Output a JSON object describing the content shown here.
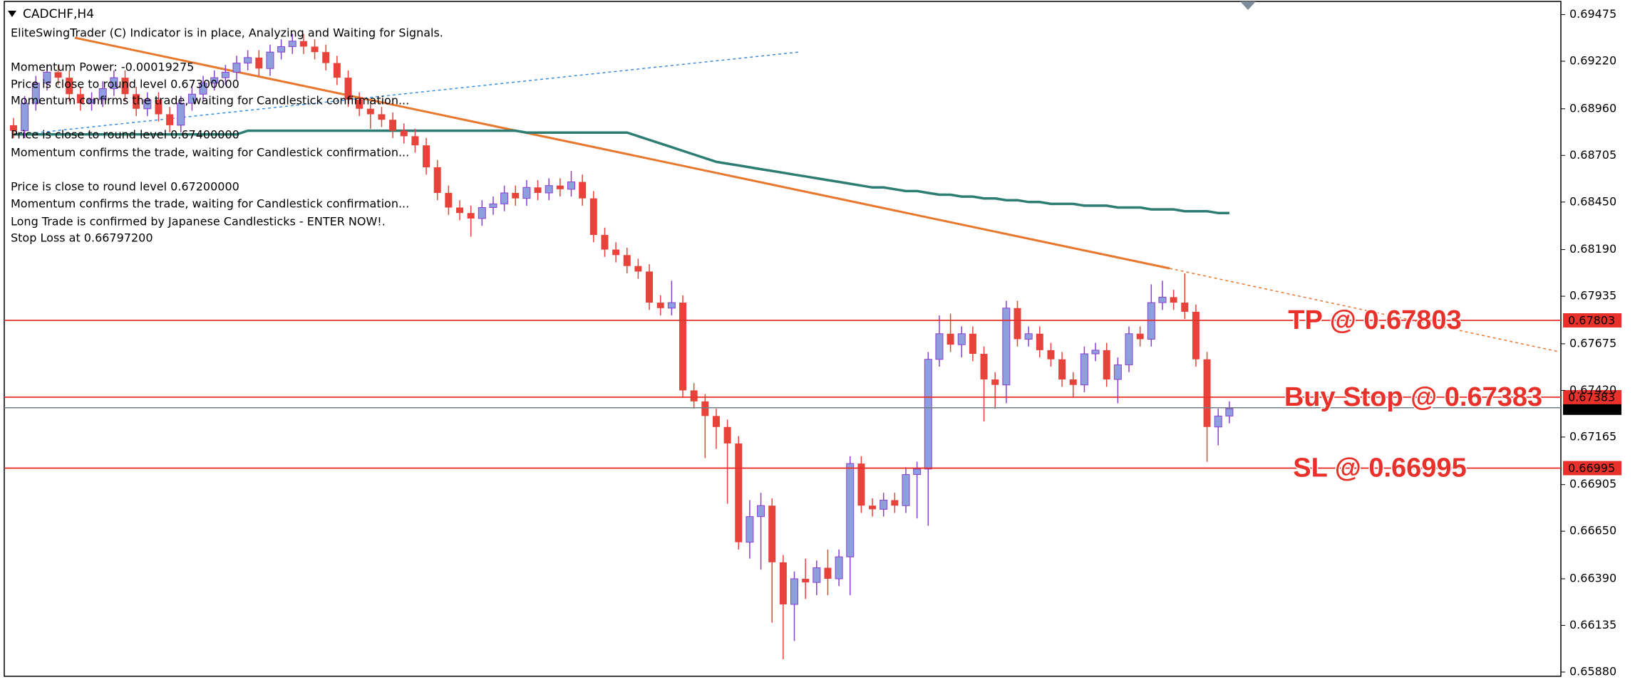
{
  "chart_data": {
    "type": "candlestick",
    "title": "CADCHF,H4",
    "messages": [
      "EliteSwingTrader (C) Indicator is in place, Analyzing and Waiting for Signals.",
      "Momentum Power: -0.00019275",
      "Price is close to round level 0.67300000",
      "Momentum confirms the trade, waiting for Candlestick confirmation...",
      "Price is close to round level 0.67400000",
      "Momentum confirms the trade, waiting for Candlestick confirmation...",
      "Price is close to round level 0.67200000",
      "Momentum confirms the trade, waiting for Candlestick confirmation...",
      "Long Trade is confirmed by Japanese Candlesticks - ENTER NOW!.",
      "Stop Loss at 0.66797200"
    ],
    "up_color": "#8d9fdc",
    "up_wick_color": "#8a3fd0",
    "down_color": "#e8433a",
    "open": [
      0.6887,
      0.6884,
      0.6899,
      0.691,
      0.6916,
      0.6913,
      0.6904,
      0.6899,
      0.6901,
      0.6907,
      0.6913,
      0.6904,
      0.6896,
      0.6901,
      0.6893,
      0.6887,
      0.6899,
      0.6904,
      0.691,
      0.6913,
      0.6916,
      0.6921,
      0.6924,
      0.6918,
      0.6927,
      0.693,
      0.6933,
      0.693,
      0.6927,
      0.6921,
      0.6913,
      0.6901,
      0.6896,
      0.6893,
      0.689,
      0.6884,
      0.6881,
      0.6876,
      0.6864,
      0.685,
      0.6842,
      0.6839,
      0.6836,
      0.6842,
      0.6844,
      0.685,
      0.6847,
      0.6853,
      0.685,
      0.6854,
      0.6852,
      0.6856,
      0.6847,
      0.6827,
      0.6819,
      0.6816,
      0.681,
      0.6807,
      0.679,
      0.6787,
      0.679,
      0.6742,
      0.6736,
      0.6728,
      0.6722,
      0.6713,
      0.6659,
      0.6673,
      0.6679,
      0.6648,
      0.6625,
      0.6639,
      0.6637,
      0.6645,
      0.6639,
      0.6651,
      0.6702,
      0.6679,
      0.6677,
      0.6682,
      0.6679,
      0.6696,
      0.6699,
      0.6759,
      0.6773,
      0.6767,
      0.6773,
      0.6762,
      0.6748,
      0.6745,
      0.6787,
      0.677,
      0.6773,
      0.6764,
      0.6759,
      0.6748,
      0.6745,
      0.6762,
      0.6764,
      0.6748,
      0.6756,
      0.6773,
      0.677,
      0.679,
      0.6793,
      0.679,
      0.6785,
      0.6759,
      0.6722,
      0.6728
    ],
    "high": [
      0.6891,
      0.6903,
      0.6914,
      0.692,
      0.692,
      0.6917,
      0.6908,
      0.6905,
      0.6911,
      0.6917,
      0.6917,
      0.6908,
      0.6905,
      0.6905,
      0.6897,
      0.6903,
      0.6908,
      0.6914,
      0.6917,
      0.692,
      0.6925,
      0.6928,
      0.6928,
      0.6931,
      0.6934,
      0.6937,
      0.6937,
      0.6934,
      0.6931,
      0.6925,
      0.6917,
      0.6905,
      0.69,
      0.6897,
      0.6894,
      0.6888,
      0.6885,
      0.688,
      0.6868,
      0.6854,
      0.6846,
      0.6843,
      0.6846,
      0.6848,
      0.6854,
      0.6854,
      0.6857,
      0.6857,
      0.6858,
      0.6858,
      0.6862,
      0.686,
      0.6851,
      0.6831,
      0.6823,
      0.682,
      0.6814,
      0.6811,
      0.6794,
      0.6802,
      0.6794,
      0.6746,
      0.674,
      0.6732,
      0.6726,
      0.6717,
      0.6682,
      0.6686,
      0.6683,
      0.6652,
      0.6643,
      0.665,
      0.6649,
      0.6655,
      0.6655,
      0.6706,
      0.6706,
      0.6683,
      0.6686,
      0.6686,
      0.67,
      0.6703,
      0.6763,
      0.6783,
      0.6784,
      0.6777,
      0.6777,
      0.6766,
      0.6752,
      0.6791,
      0.6791,
      0.6777,
      0.6777,
      0.6768,
      0.6763,
      0.6752,
      0.6766,
      0.6768,
      0.6768,
      0.676,
      0.6777,
      0.6777,
      0.68,
      0.6802,
      0.6797,
      0.6806,
      0.6789,
      0.6763,
      0.6732,
      0.6736
    ],
    "low": [
      0.688,
      0.688,
      0.6895,
      0.6906,
      0.6909,
      0.69,
      0.6895,
      0.6895,
      0.6897,
      0.6903,
      0.69,
      0.6892,
      0.6892,
      0.6889,
      0.6883,
      0.6883,
      0.6895,
      0.69,
      0.6906,
      0.6909,
      0.6912,
      0.6917,
      0.6914,
      0.6914,
      0.6923,
      0.6926,
      0.6926,
      0.6923,
      0.6917,
      0.6909,
      0.6897,
      0.6892,
      0.6885,
      0.6886,
      0.688,
      0.6877,
      0.6872,
      0.686,
      0.6846,
      0.6838,
      0.6835,
      0.6826,
      0.6832,
      0.6838,
      0.684,
      0.6843,
      0.6843,
      0.6846,
      0.6846,
      0.6848,
      0.6848,
      0.6843,
      0.6823,
      0.6815,
      0.6812,
      0.6806,
      0.6803,
      0.6786,
      0.6783,
      0.6783,
      0.6738,
      0.6732,
      0.6705,
      0.671,
      0.668,
      0.6655,
      0.665,
      0.6644,
      0.6615,
      0.6595,
      0.6605,
      0.6628,
      0.663,
      0.663,
      0.6635,
      0.663,
      0.6675,
      0.6673,
      0.6673,
      0.6675,
      0.6675,
      0.6672,
      0.6668,
      0.6755,
      0.6763,
      0.676,
      0.6758,
      0.6725,
      0.6732,
      0.6735,
      0.6766,
      0.6766,
      0.676,
      0.6755,
      0.6744,
      0.6738,
      0.6741,
      0.6758,
      0.6744,
      0.6735,
      0.6752,
      0.6766,
      0.6766,
      0.6786,
      0.6786,
      0.6781,
      0.6755,
      0.6703,
      0.6712,
      0.6724
    ],
    "close": [
      0.6884,
      0.6899,
      0.691,
      0.6916,
      0.6913,
      0.6904,
      0.6899,
      0.6901,
      0.6907,
      0.6913,
      0.6904,
      0.6896,
      0.6901,
      0.6893,
      0.6887,
      0.6899,
      0.6904,
      0.691,
      0.6913,
      0.6916,
      0.6921,
      0.6924,
      0.6918,
      0.6927,
      0.693,
      0.6933,
      0.693,
      0.6927,
      0.6921,
      0.6913,
      0.6901,
      0.6896,
      0.6893,
      0.689,
      0.6884,
      0.6881,
      0.6876,
      0.6864,
      0.685,
      0.6842,
      0.6839,
      0.6836,
      0.6842,
      0.6844,
      0.685,
      0.6847,
      0.6853,
      0.685,
      0.6854,
      0.6852,
      0.6856,
      0.6847,
      0.6827,
      0.6819,
      0.6816,
      0.681,
      0.6807,
      0.679,
      0.6787,
      0.679,
      0.6742,
      0.6736,
      0.6728,
      0.6722,
      0.6713,
      0.6659,
      0.6673,
      0.6679,
      0.6648,
      0.6625,
      0.6639,
      0.6637,
      0.6645,
      0.6639,
      0.6651,
      0.6702,
      0.6679,
      0.6677,
      0.6682,
      0.6679,
      0.6696,
      0.6699,
      0.6759,
      0.6773,
      0.6767,
      0.6773,
      0.6762,
      0.6748,
      0.6745,
      0.6787,
      0.677,
      0.6773,
      0.6764,
      0.6759,
      0.6748,
      0.6745,
      0.6762,
      0.6764,
      0.6748,
      0.6756,
      0.6773,
      0.677,
      0.679,
      0.6793,
      0.679,
      0.6785,
      0.6759,
      0.6722,
      0.6728,
      0.6732
    ],
    "moving_average": {
      "color": "#2e7d72",
      "values": [
        0.6882,
        0.6882,
        0.6882,
        0.6882,
        0.6882,
        0.6882,
        0.6882,
        0.6882,
        0.6882,
        0.6882,
        0.6882,
        0.6882,
        0.6882,
        0.6882,
        0.6882,
        0.6882,
        0.6882,
        0.6882,
        0.6882,
        0.6882,
        0.6882,
        0.6884,
        0.6884,
        0.6884,
        0.6884,
        0.6884,
        0.6884,
        0.6884,
        0.6884,
        0.6884,
        0.6884,
        0.6884,
        0.6884,
        0.6884,
        0.6884,
        0.6884,
        0.6884,
        0.6884,
        0.6884,
        0.6884,
        0.6884,
        0.6884,
        0.6884,
        0.6884,
        0.6884,
        0.6884,
        0.6883,
        0.6883,
        0.6883,
        0.6883,
        0.6883,
        0.6883,
        0.6883,
        0.6883,
        0.6883,
        0.6883,
        0.6881,
        0.6879,
        0.6877,
        0.6875,
        0.6873,
        0.6871,
        0.6869,
        0.6867,
        0.6866,
        0.6865,
        0.6864,
        0.6863,
        0.6862,
        0.6861,
        0.686,
        0.6859,
        0.6858,
        0.6857,
        0.6856,
        0.6855,
        0.6854,
        0.6853,
        0.6853,
        0.6852,
        0.6851,
        0.6851,
        0.685,
        0.6849,
        0.6849,
        0.6848,
        0.6848,
        0.6847,
        0.6847,
        0.6846,
        0.6846,
        0.6845,
        0.6845,
        0.6844,
        0.6844,
        0.6844,
        0.6843,
        0.6843,
        0.6843,
        0.6842,
        0.6842,
        0.6842,
        0.6841,
        0.6841,
        0.6841,
        0.684,
        0.684,
        0.684,
        0.6839,
        0.6839
      ]
    },
    "ylim": [
      0.6588,
      0.69475
    ],
    "yticks": [
      0.69475,
      {
        "value": 0.6922,
        "label": "0.69220"
      },
      {
        "value": 0.6896,
        "label": "0.68960"
      },
      0.68705,
      {
        "value": 0.6845,
        "label": "0.68450"
      },
      {
        "value": 0.6819,
        "label": "0.68190"
      },
      0.67935,
      0.67675,
      {
        "value": 0.6742,
        "label": "0.67420"
      },
      0.67165,
      0.66905,
      {
        "value": 0.6665,
        "label": "0.66650"
      },
      {
        "value": 0.6639,
        "label": "0.66390"
      },
      0.66135,
      {
        "value": 0.6588,
        "label": "0.65880"
      }
    ],
    "levels": [
      {
        "value": 0.67803,
        "annotation": "TP @ 0.67803",
        "color": "#e8312a"
      },
      {
        "value": 0.67383,
        "annotation": "Buy Stop @ 0.67383",
        "color": "#e8312a"
      },
      {
        "value": 0.66995,
        "annotation": "SL @ 0.66995",
        "color": "#e8312a"
      }
    ],
    "current_price": {
      "value": 0.67325,
      "color": "#6f7f86"
    }
  }
}
